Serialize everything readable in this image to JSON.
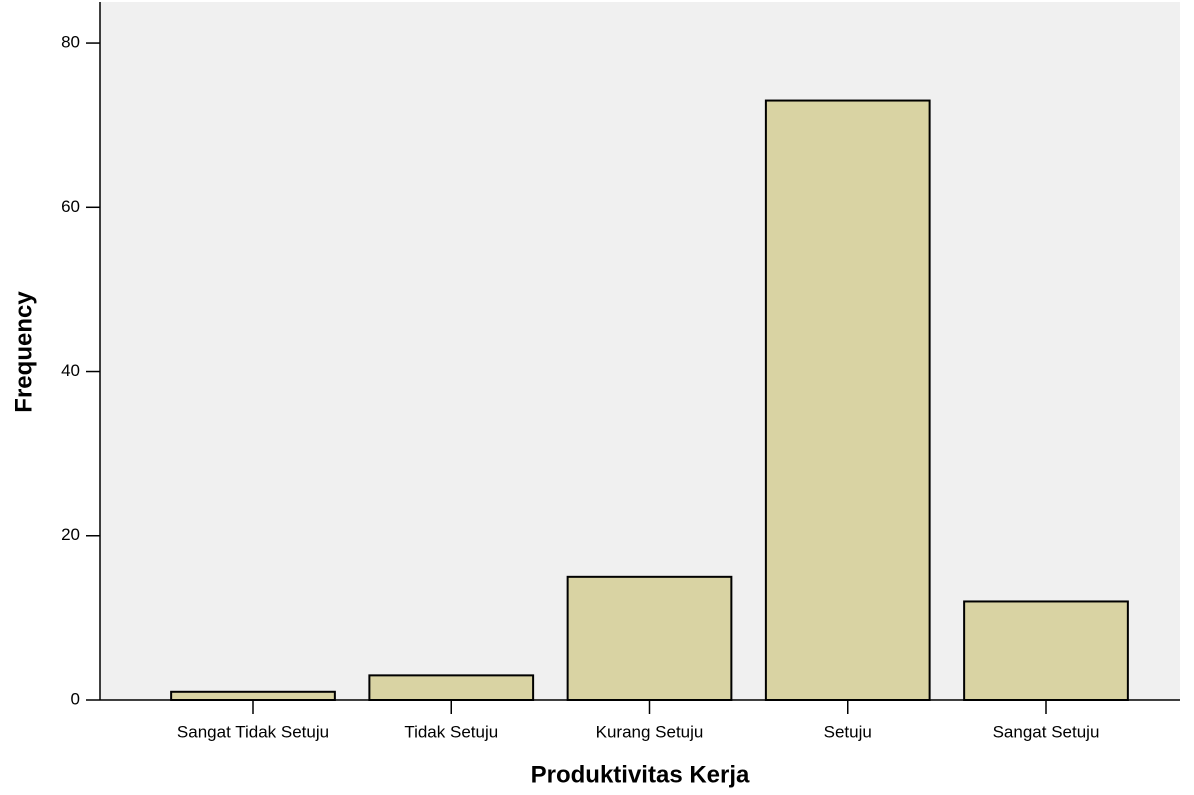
{
  "chart_data": {
    "type": "bar",
    "x_label": "Produktivitas Kerja",
    "y_label": "Frequency",
    "categories": [
      "Sangat Tidak Setuju",
      "Tidak Setuju",
      "Kurang Setuju",
      "Setuju",
      "Sangat Setuju"
    ],
    "values": [
      1,
      3,
      15,
      73,
      12
    ],
    "color": "#d9d3a3",
    "ylim": [
      0,
      85
    ],
    "yticks": [
      0,
      20,
      40,
      60,
      80
    ]
  }
}
